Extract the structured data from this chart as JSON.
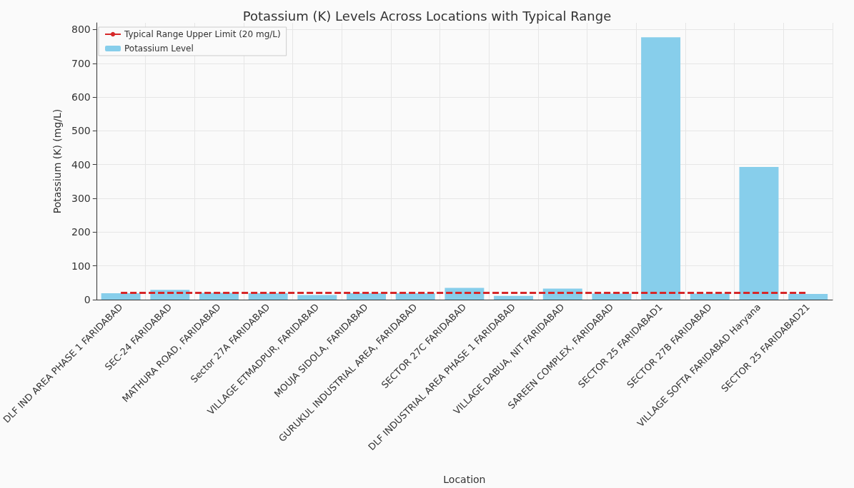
{
  "chart_data": {
    "type": "bar",
    "title": "Potassium (K) Levels Across Locations with Typical Range",
    "xlabel": "Location",
    "ylabel": "Potassium (K) (mg/L)",
    "categories": [
      "DLF IND AREA PHASE 1 FARIDABAD",
      "SEC-24 FARIDABAD",
      "MATHURA ROAD, FARIDABAD",
      "Sector 27A FARIDABAD",
      "VILLAGE ETMADPUR, FARIDABAD",
      "MOUJA SIDOLA, FARIDABAD",
      "GURUKUL INDUSTRIAL AREA, FARIDABAD",
      "SECTOR 27C FARIDABAD",
      "DLF INDUSTRIAL AREA PHASE 1 FARIDABAD",
      "VILLAGE DABUA, NIT FARIDABAD",
      "SAREEN COMPLEX, FARIDABAD",
      "SECTOR 25 FARIDABAD1",
      "SECTOR 27B FARIDABAD",
      "VILLAGE SOFTA FARIDABAD Haryana",
      "SECTOR 25 FARIDABAD21"
    ],
    "series": [
      {
        "type": "line",
        "name": "Typical Range Upper Limit (20 mg/L)",
        "color": "#d62728",
        "line_style": "dashed",
        "values": [
          20,
          20,
          20,
          20,
          20,
          20,
          20,
          20,
          20,
          20,
          20,
          20,
          20,
          20,
          20
        ]
      },
      {
        "name": "Potassium Level",
        "color": "#87ceeb",
        "values": [
          19,
          29,
          20,
          19,
          14,
          19,
          19,
          35,
          11,
          33,
          18,
          777,
          18,
          393,
          17
        ]
      }
    ],
    "ylim": [
      0,
      820
    ],
    "yticks": [
      0,
      100,
      200,
      300,
      400,
      500,
      600,
      700,
      800
    ],
    "grid": true,
    "legend": "top left",
    "marker": "none"
  }
}
